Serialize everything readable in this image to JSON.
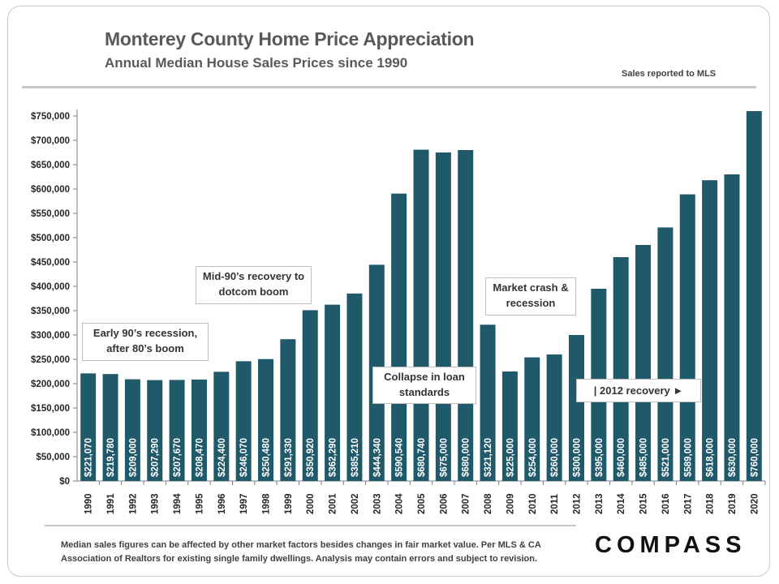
{
  "header": {
    "title": "Monterey County Home Price Appreciation",
    "subtitle": "Annual Median House Sales Prices since 1990",
    "source_note": "Sales reported to MLS"
  },
  "annotations": {
    "early90s": "Early 90’s recession, after 80’s boom",
    "mid90s": "Mid-90’s recovery to dotcom boom",
    "collapse": "Collapse in loan standards",
    "crash": "Market crash & recession",
    "recovery2012": "| 2012 recovery ►"
  },
  "footer": {
    "disclaimer": "Median sales figures can be affected by other market factors besides changes in fair market value. Per MLS & CA Association of Realtors for existing single family dwellings. Analysis may contain errors and subject to revision.",
    "logo": "COMPASS"
  },
  "colors": {
    "bar": "#20596a",
    "label": "#ffffff",
    "text": "#595959",
    "grid": "#d9d9d9"
  },
  "chart_data": {
    "type": "bar",
    "title": "Monterey County Home Price Appreciation",
    "subtitle": "Annual Median House Sales Prices since 1990",
    "xlabel": "",
    "ylabel": "",
    "ylim": [
      0,
      750000
    ],
    "yticks": [
      "$0",
      "$50,000",
      "$100,000",
      "$150,000",
      "$200,000",
      "$250,000",
      "$300,000",
      "$350,000",
      "$400,000",
      "$450,000",
      "$500,000",
      "$550,000",
      "$600,000",
      "$650,000",
      "$700,000",
      "$750,000"
    ],
    "grid": false,
    "categories": [
      "1990",
      "1991",
      "1992",
      "1993",
      "1994",
      "1995",
      "1996",
      "1997",
      "1998",
      "1999",
      "2000",
      "2001",
      "2002",
      "2003",
      "2004",
      "2005",
      "2006",
      "2007",
      "2008",
      "2009",
      "2010",
      "2011",
      "2012",
      "2013",
      "2014",
      "2015",
      "2016",
      "2017",
      "2018",
      "2019",
      "2020"
    ],
    "values": [
      221070,
      219780,
      209000,
      207290,
      207670,
      208470,
      224400,
      246070,
      250480,
      291330,
      350920,
      362290,
      385210,
      444340,
      590540,
      680740,
      675000,
      680000,
      321120,
      225000,
      254000,
      260000,
      300000,
      395000,
      460000,
      485000,
      521000,
      589000,
      618000,
      630000,
      760000
    ],
    "data_labels": [
      "$221,070",
      "$219,780",
      "$209,000",
      "$207,290",
      "$207,670",
      "$208,470",
      "$224,400",
      "$246,070",
      "$250,480",
      "$291,330",
      "$350,920",
      "$362,290",
      "$385,210",
      "$444,340",
      "$590,540",
      "$680,740",
      "$675,000",
      "$680,000",
      "$321,120",
      "$225,000",
      "$254,000",
      "$260,000",
      "$300,000",
      "$395,000",
      "$460,000",
      "$485,000",
      "$521,000",
      "$589,000",
      "$618,000",
      "$630,000",
      "$760,000"
    ]
  }
}
